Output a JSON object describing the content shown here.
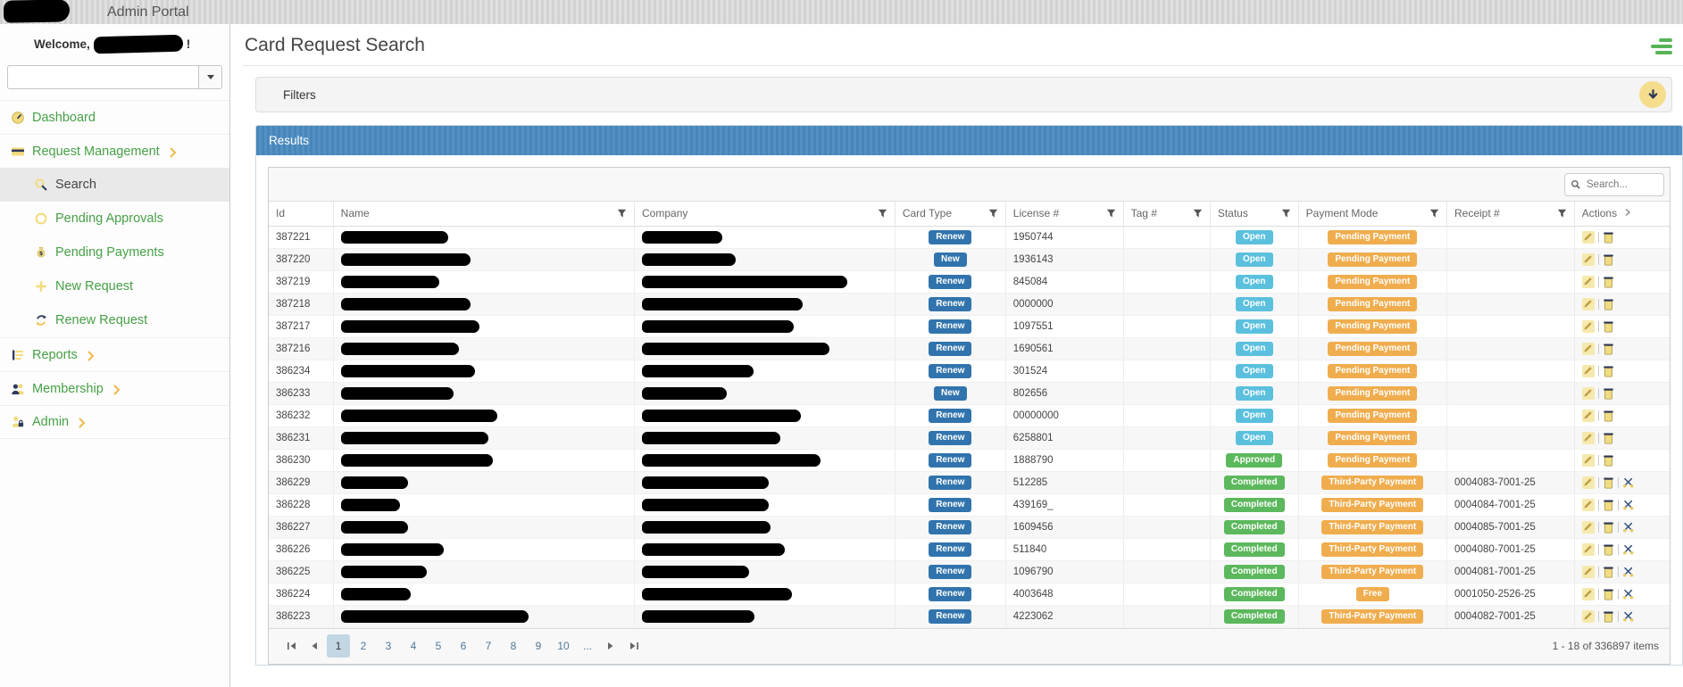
{
  "topbar": {
    "title": "Admin Portal"
  },
  "sidebar": {
    "welcome_prefix": "Welcome,",
    "welcome_suffix": "!",
    "items": [
      {
        "label": "Dashboard",
        "icon": "dashboard-icon",
        "level": 0,
        "chevron": false,
        "active": false
      },
      {
        "label": "Request Management",
        "icon": "credit-card-icon",
        "level": 0,
        "chevron": true,
        "active": false
      },
      {
        "label": "Search",
        "icon": "search-icon",
        "level": 1,
        "chevron": false,
        "active": true
      },
      {
        "label": "Pending Approvals",
        "icon": "circle-icon",
        "level": 1,
        "chevron": false,
        "active": false
      },
      {
        "label": "Pending Payments",
        "icon": "money-bag-icon",
        "level": 1,
        "chevron": false,
        "active": false
      },
      {
        "label": "New Request",
        "icon": "plus-icon",
        "level": 1,
        "chevron": false,
        "active": false
      },
      {
        "label": "Renew Request",
        "icon": "refresh-icon",
        "level": 1,
        "chevron": false,
        "active": false
      },
      {
        "label": "Reports",
        "icon": "report-icon",
        "level": 0,
        "chevron": true,
        "active": false
      },
      {
        "label": "Membership",
        "icon": "people-icon",
        "level": 0,
        "chevron": true,
        "active": false
      },
      {
        "label": "Admin",
        "icon": "user-lock-icon",
        "level": 0,
        "chevron": true,
        "active": false
      }
    ]
  },
  "page": {
    "title": "Card Request Search"
  },
  "filters": {
    "title": "Filters"
  },
  "results": {
    "title": "Results",
    "search_placeholder": "Search...",
    "columns": [
      {
        "label": "Id",
        "filter": false,
        "arrow": false
      },
      {
        "label": "Name",
        "filter": true,
        "arrow": false
      },
      {
        "label": "Company",
        "filter": true,
        "arrow": false
      },
      {
        "label": "Card Type",
        "filter": true,
        "arrow": false
      },
      {
        "label": "License #",
        "filter": true,
        "arrow": false
      },
      {
        "label": "Tag #",
        "filter": true,
        "arrow": false
      },
      {
        "label": "Status",
        "filter": true,
        "arrow": false
      },
      {
        "label": "Payment Mode",
        "filter": true,
        "arrow": false
      },
      {
        "label": "Receipt #",
        "filter": true,
        "arrow": false
      },
      {
        "label": "Actions",
        "filter": false,
        "arrow": true
      }
    ],
    "rows": [
      {
        "id": "387221",
        "name_w": 120,
        "company_w": 90,
        "card_type": "Renew",
        "license": "1950744",
        "tag": "",
        "status": "Open",
        "payment": "Pending Payment",
        "receipt": "",
        "actions": [
          "edit",
          "delete"
        ]
      },
      {
        "id": "387220",
        "name_w": 145,
        "company_w": 105,
        "card_type": "New",
        "license": "1936143",
        "tag": "",
        "status": "Open",
        "payment": "Pending Payment",
        "receipt": "",
        "actions": [
          "edit",
          "delete"
        ]
      },
      {
        "id": "387219",
        "name_w": 110,
        "company_w": 230,
        "card_type": "Renew",
        "license": "845084",
        "tag": "",
        "status": "Open",
        "payment": "Pending Payment",
        "receipt": "",
        "actions": [
          "edit",
          "delete"
        ]
      },
      {
        "id": "387218",
        "name_w": 145,
        "company_w": 180,
        "card_type": "Renew",
        "license": "0000000",
        "tag": "",
        "status": "Open",
        "payment": "Pending Payment",
        "receipt": "",
        "actions": [
          "edit",
          "delete"
        ]
      },
      {
        "id": "387217",
        "name_w": 155,
        "company_w": 170,
        "card_type": "Renew",
        "license": "1097551",
        "tag": "",
        "status": "Open",
        "payment": "Pending Payment",
        "receipt": "",
        "actions": [
          "edit",
          "delete"
        ]
      },
      {
        "id": "387216",
        "name_w": 132,
        "company_w": 210,
        "card_type": "Renew",
        "license": "1690561",
        "tag": "",
        "status": "Open",
        "payment": "Pending Payment",
        "receipt": "",
        "actions": [
          "edit",
          "delete"
        ]
      },
      {
        "id": "386234",
        "name_w": 150,
        "company_w": 125,
        "card_type": "Renew",
        "license": "301524",
        "tag": "",
        "status": "Open",
        "payment": "Pending Payment",
        "receipt": "",
        "actions": [
          "edit",
          "delete"
        ]
      },
      {
        "id": "386233",
        "name_w": 126,
        "company_w": 95,
        "card_type": "New",
        "license": "802656",
        "tag": "",
        "status": "Open",
        "payment": "Pending Payment",
        "receipt": "",
        "actions": [
          "edit",
          "delete"
        ]
      },
      {
        "id": "386232",
        "name_w": 175,
        "company_w": 178,
        "card_type": "Renew",
        "license": "00000000",
        "tag": "",
        "status": "Open",
        "payment": "Pending Payment",
        "receipt": "",
        "actions": [
          "edit",
          "delete"
        ]
      },
      {
        "id": "386231",
        "name_w": 165,
        "company_w": 155,
        "card_type": "Renew",
        "license": "6258801",
        "tag": "",
        "status": "Open",
        "payment": "Pending Payment",
        "receipt": "",
        "actions": [
          "edit",
          "delete"
        ]
      },
      {
        "id": "386230",
        "name_w": 170,
        "company_w": 200,
        "card_type": "Renew",
        "license": "1888790",
        "tag": "",
        "status": "Approved",
        "payment": "Pending Payment",
        "receipt": "",
        "actions": [
          "edit",
          "delete"
        ]
      },
      {
        "id": "386229",
        "name_w": 75,
        "company_w": 142,
        "card_type": "Renew",
        "license": "512285",
        "tag": "",
        "status": "Completed",
        "payment": "Third-Party Payment",
        "receipt": "0004083-7001-25",
        "actions": [
          "edit",
          "delete",
          "scissors"
        ]
      },
      {
        "id": "386228",
        "name_w": 66,
        "company_w": 142,
        "card_type": "Renew",
        "license": "439169_",
        "tag": "",
        "status": "Completed",
        "payment": "Third-Party Payment",
        "receipt": "0004084-7001-25",
        "actions": [
          "edit",
          "delete",
          "scissors"
        ]
      },
      {
        "id": "386227",
        "name_w": 75,
        "company_w": 144,
        "card_type": "Renew",
        "license": "1609456",
        "tag": "",
        "status": "Completed",
        "payment": "Third-Party Payment",
        "receipt": "0004085-7001-25",
        "actions": [
          "edit",
          "delete",
          "scissors"
        ]
      },
      {
        "id": "386226",
        "name_w": 115,
        "company_w": 160,
        "card_type": "Renew",
        "license": "511840",
        "tag": "",
        "status": "Completed",
        "payment": "Third-Party Payment",
        "receipt": "0004080-7001-25",
        "actions": [
          "edit",
          "delete",
          "scissors"
        ]
      },
      {
        "id": "386225",
        "name_w": 96,
        "company_w": 120,
        "card_type": "Renew",
        "license": "1096790",
        "tag": "",
        "status": "Completed",
        "payment": "Third-Party Payment",
        "receipt": "0004081-7001-25",
        "actions": [
          "edit",
          "delete",
          "scissors"
        ]
      },
      {
        "id": "386224",
        "name_w": 78,
        "company_w": 168,
        "card_type": "Renew",
        "license": "4003648",
        "tag": "",
        "status": "Completed",
        "payment": "Free",
        "receipt": "0001050-2526-25",
        "actions": [
          "edit",
          "delete",
          "scissors"
        ]
      },
      {
        "id": "386223",
        "name_w": 210,
        "company_w": 126,
        "card_type": "Renew",
        "license": "4223062",
        "tag": "",
        "status": "Completed",
        "payment": "Third-Party Payment",
        "receipt": "0004082-7001-25",
        "actions": [
          "edit",
          "delete",
          "scissors"
        ]
      }
    ],
    "pager": {
      "pages": [
        "1",
        "2",
        "3",
        "4",
        "5",
        "6",
        "7",
        "8",
        "9",
        "10"
      ],
      "active": "1",
      "ellipsis": "...",
      "info": "1 - 18 of 336897 items"
    }
  },
  "colors": {
    "menu_green": "#46a046",
    "icon_yellow": "#f2db7d",
    "icon_navy": "#2e3a59",
    "chevron_orange": "#f0b84b",
    "results_header_blue": "#4a89bd",
    "badge_blue": "#3174ad",
    "badge_light_blue": "#5bc0de",
    "badge_green": "#5cb85c",
    "badge_orange": "#f0ad4e"
  }
}
